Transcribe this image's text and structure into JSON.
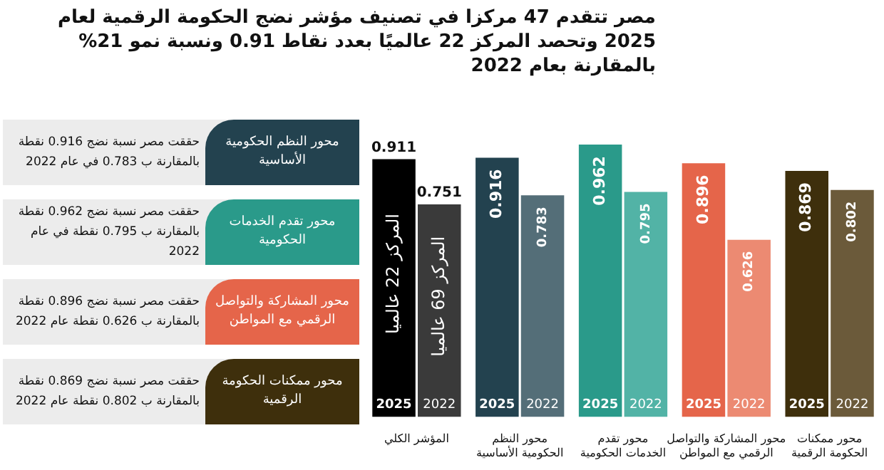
{
  "chart_data": {
    "type": "bar",
    "title": "مصر تتقدم 47 مركزا في تصنيف مؤشر نضج الحكومة الرقمية لعام 2025 وتحصد المركز 22 عالميًا بعدد نقاط 0.91 ونسبة نمو 21% بالمقارنة بعام 2022",
    "categories": [
      "المؤشر الكلي",
      "محور النظم الحكومية الأساسية",
      "محور تقدم الخدمات الحكومية",
      "محور المشاركة والتواصل الرقمي مع المواطن",
      "محور ممكنات الحكومة الرقمية"
    ],
    "series": [
      {
        "name": "2025",
        "colors": [
          "#000000",
          "#23424f",
          "#2a9a8a",
          "#e5654a",
          "#3e2f0c"
        ],
        "values": [
          0.911,
          0.916,
          0.962,
          0.896,
          0.869
        ]
      },
      {
        "name": "2022",
        "colors": [
          "#3a3a3a",
          "#546e78",
          "#52b3a6",
          "#ec8a72",
          "#6b5a3a"
        ],
        "values": [
          0.751,
          0.783,
          0.795,
          0.626,
          0.802
        ]
      }
    ],
    "data_labels": true,
    "annotations": [
      "المركز 22 عالميا",
      "المركز 69 عالميا",
      "محور النظم الحكومية الأساسية",
      "حققت مصر نسبة نضج 0.916 نقطة بالمقارنة ب 0.783 في عام 2022",
      "محور تقدم الخدمات الحكومية",
      "حققت مصر نسبة نضج 0.962 نقطة بالمقارنة ب 0.795 نقطة في عام 2022",
      "محور المشاركة والتواصل الرقمي مع المواطن",
      "حققت مصر نسبة نضج 0.896 نقطة بالمقارنة ب 0.626 نقطة عام 2022",
      "محور ممكنات الحكومة الرقمية",
      "حققت مصر نسبة نضج 0.869 نقطة بالمقارنة ب 0.802 نقطة عام 2022"
    ]
  }
}
